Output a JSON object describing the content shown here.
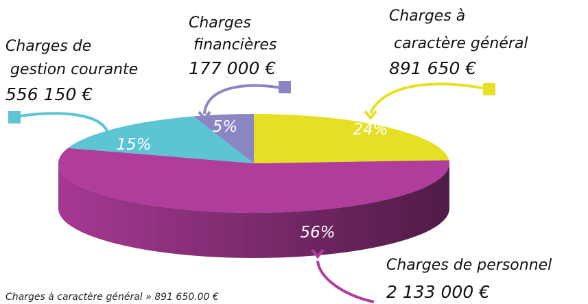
{
  "chart_data": {
    "type": "pie",
    "categories": [
      "Charges à caractère général",
      "Charges de personnel",
      "Charges de gestion courante",
      "Charges financières"
    ],
    "values": [
      24,
      56,
      15,
      5
    ],
    "value_labels": [
      "24%",
      "56%",
      "15%",
      "5%"
    ],
    "amount_labels": [
      "891 650 €",
      "2 133 000 €",
      "556 150 €",
      "177 000 €"
    ],
    "colors": [
      "#e6e024",
      "#b03c9c",
      "#5cc4d2",
      "#8a86c4"
    ],
    "footer": "Charges à caractère général » 891 650.00 €"
  }
}
